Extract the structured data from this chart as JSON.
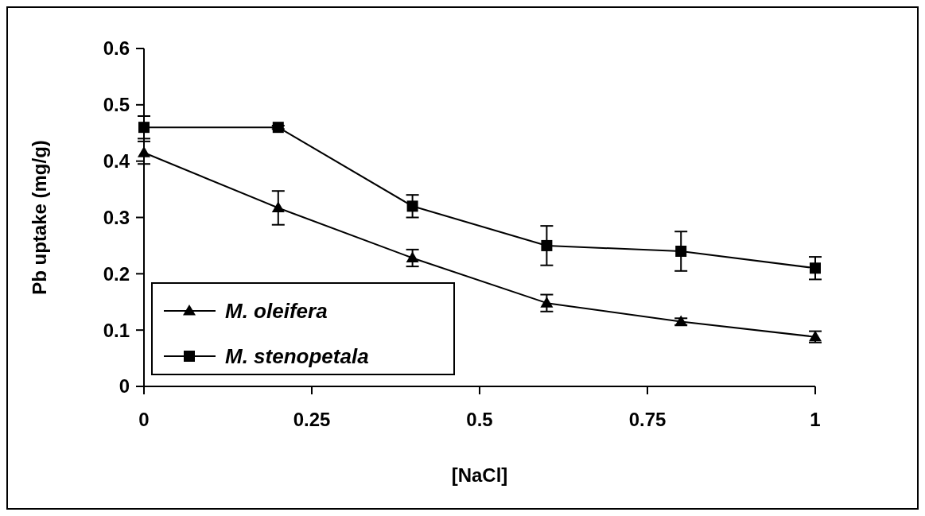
{
  "chart_data": {
    "type": "line",
    "xlabel": "[NaCl]",
    "ylabel": "Pb uptake (mg/g)",
    "x": [
      0,
      0.2,
      0.4,
      0.6,
      0.8,
      1
    ],
    "series": [
      {
        "name": "M. oleifera",
        "color": "#000000",
        "marker": "triangle",
        "values": [
          0.415,
          0.317,
          0.228,
          0.148,
          0.115,
          0.088
        ],
        "errors": [
          0.02,
          0.03,
          0.015,
          0.015,
          0.006,
          0.01
        ]
      },
      {
        "name": "M. stenopetala",
        "color": "#000000",
        "marker": "square",
        "values": [
          0.46,
          0.46,
          0.32,
          0.25,
          0.24,
          0.21
        ],
        "errors": [
          0.02,
          0.003,
          0.02,
          0.035,
          0.035,
          0.02
        ]
      }
    ],
    "xlim": [
      0,
      1
    ],
    "xticks": [
      0,
      0.25,
      0.5,
      0.75,
      1
    ],
    "ylim": [
      0,
      0.6
    ],
    "yticks": [
      0,
      0.1,
      0.2,
      0.3,
      0.4,
      0.5,
      0.6
    ],
    "grid": false,
    "legend": "bottom left",
    "line_style": "solid"
  }
}
